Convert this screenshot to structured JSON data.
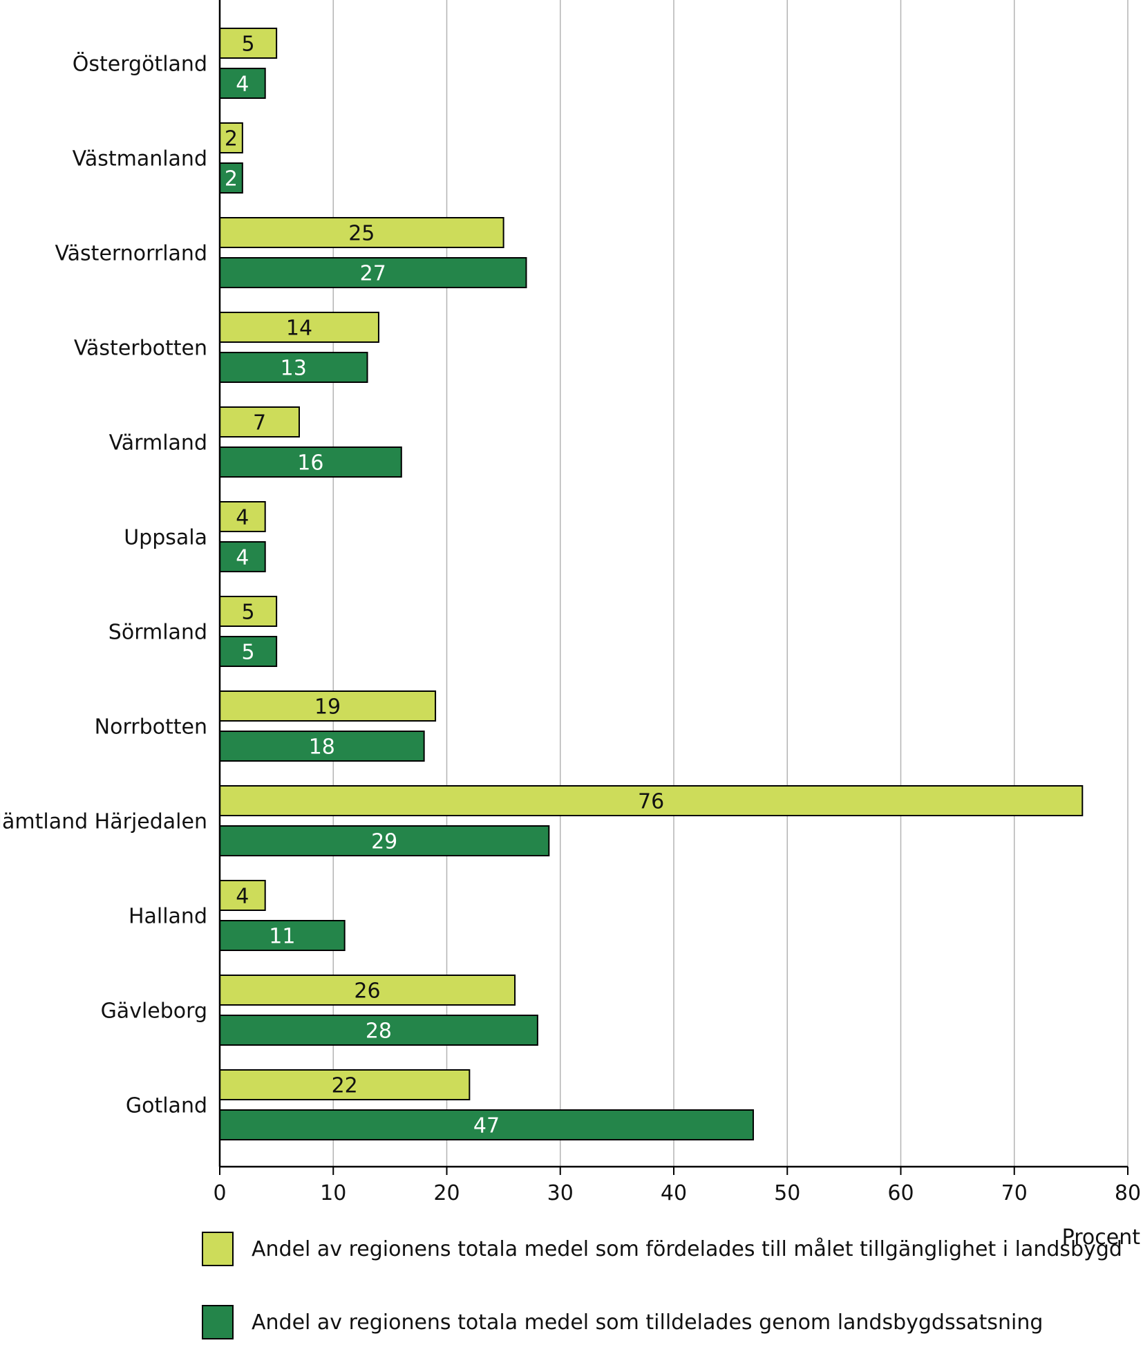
{
  "colors": {
    "series1": "#cddc5a",
    "series2": "#24854a",
    "grid": "#b3b3b3",
    "axis": "#000000"
  },
  "chart_data": {
    "type": "bar",
    "orientation": "horizontal",
    "categories": [
      "Östergötland",
      "Västmanland",
      "Västernorrland",
      "Västerbotten",
      "Värmland",
      "Uppsala",
      "Sörmland",
      "Norrbotten",
      "Jämtland Härjedalen",
      "Halland",
      "Gävleborg",
      "Gotland"
    ],
    "series": [
      {
        "name": "Andel av regionens totala medel som fördelades till målet tillgänglighet i landsbygd",
        "values": [
          5,
          2,
          25,
          14,
          7,
          4,
          5,
          19,
          76,
          4,
          26,
          22
        ]
      },
      {
        "name": "Andel av regionens totala medel som tilldelades genom landsbygdssatsning",
        "values": [
          4,
          2,
          27,
          13,
          16,
          4,
          5,
          18,
          29,
          11,
          28,
          47
        ]
      }
    ],
    "xlabel": "Procent",
    "xlim": [
      0,
      80
    ],
    "xticks": [
      0,
      10,
      20,
      30,
      40,
      50,
      60,
      70,
      80
    ],
    "grid": "vertical",
    "legend_position": "bottom"
  }
}
